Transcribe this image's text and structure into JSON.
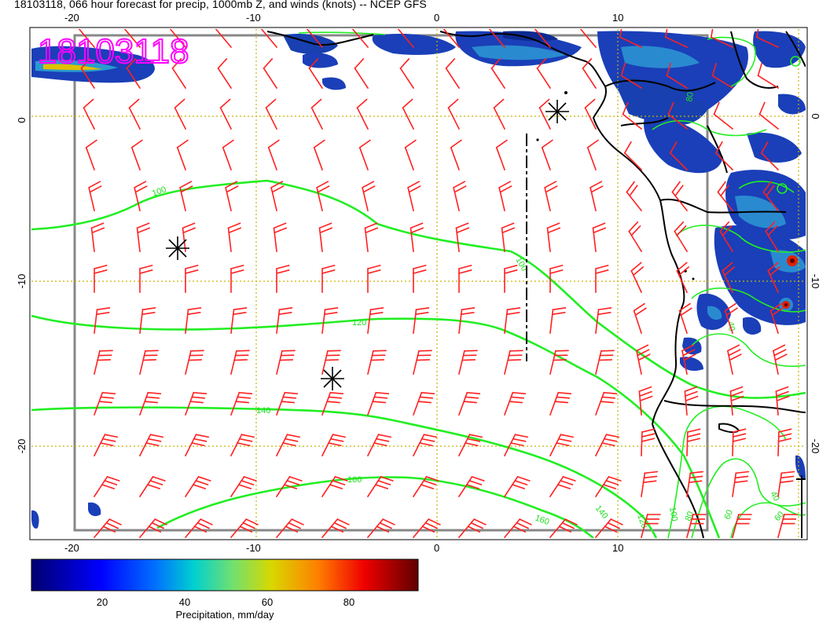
{
  "title": "18103118, 066 hour forecast for precip, 1000mb Z, and winds (knots) -- NCEP GFS",
  "stamp": "18103118",
  "map": {
    "lon_labels": [
      "-20",
      "-10",
      "0",
      "10"
    ],
    "lat_labels": [
      "0",
      "-10",
      "-20"
    ],
    "contour_labels": [
      "100",
      "100",
      "120",
      "140",
      "160",
      "160",
      "140",
      "120",
      "100",
      "80",
      "60",
      "60",
      "40",
      "40",
      "80"
    ],
    "colors": {
      "wind_barb": "#ff2020",
      "contour": "#22ee22",
      "coastline": "#000000",
      "grid": "#c8b400",
      "frame": "#888888",
      "stamp": "#ff00ff"
    }
  },
  "colorbar": {
    "label": "Precipitation, mm/day",
    "ticks": [
      "20",
      "40",
      "60",
      "80"
    ],
    "colors": [
      "#000080",
      "#0000ff",
      "#0080ff",
      "#00dddd",
      "#80ff80",
      "#dddd00",
      "#ff8000",
      "#ff0000",
      "#800000"
    ]
  }
}
